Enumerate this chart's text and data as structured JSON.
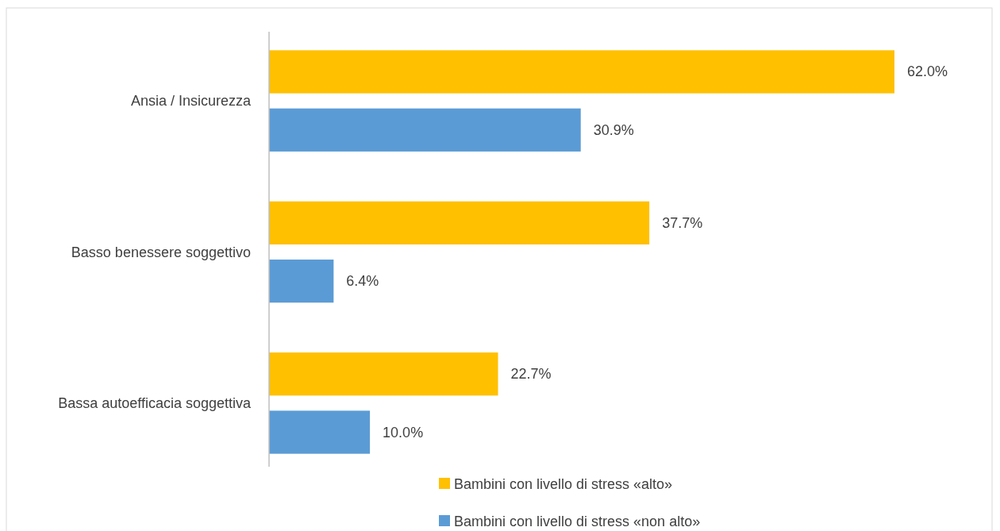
{
  "chart_data": {
    "type": "bar",
    "orientation": "horizontal",
    "categories": [
      "Ansia / Insicurezza",
      "Basso benessere soggettivo",
      "Bassa autoefficacia soggettiva"
    ],
    "series": [
      {
        "name": "Bambini con livello di stress «alto»",
        "color": "#ffc000",
        "values": [
          62.0,
          37.7,
          22.7
        ],
        "value_labels": [
          "62.0%",
          "37.7%",
          "22.7%"
        ]
      },
      {
        "name": "Bambini con livello di stress «non alto»",
        "color": "#5b9bd5",
        "values": [
          30.9,
          6.4,
          10.0
        ],
        "value_labels": [
          "30.9%",
          "6.4%",
          "10.0%"
        ]
      }
    ],
    "legend": "bottom",
    "grid": false
  }
}
